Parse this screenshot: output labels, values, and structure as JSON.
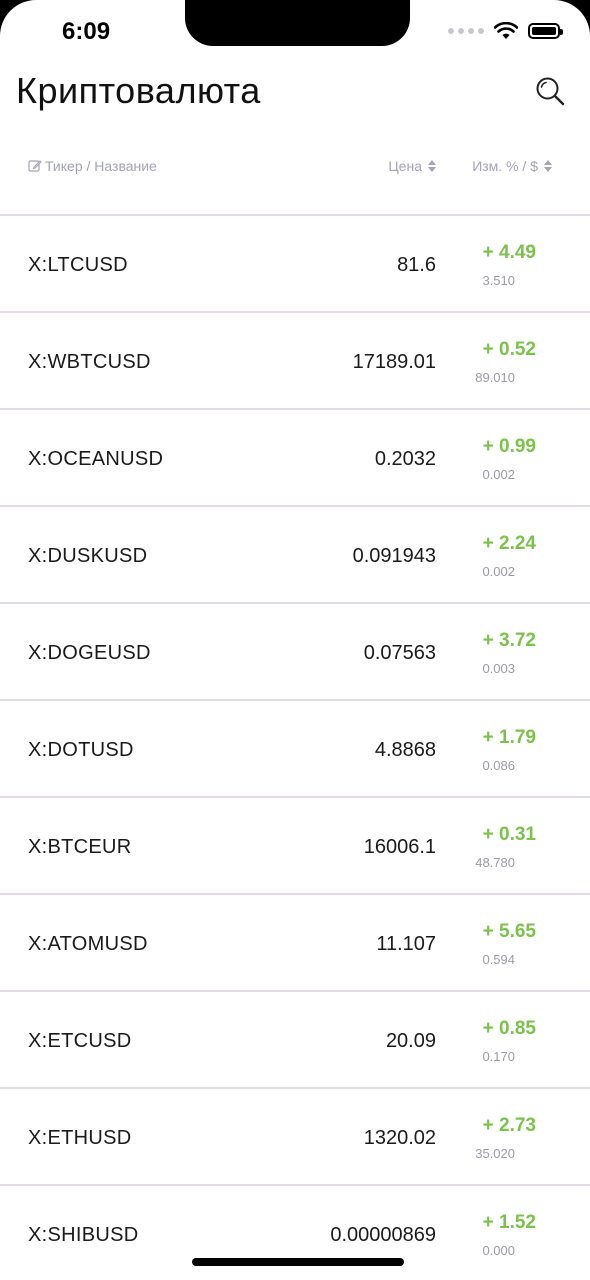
{
  "status_bar": {
    "time": "6:09",
    "icons": [
      "signal-icon",
      "wifi-icon",
      "battery-icon"
    ]
  },
  "header": {
    "title": "Криптовалюта",
    "search_icon": "search-icon"
  },
  "columns": {
    "ticker": "Тикер / Название",
    "price": "Цена",
    "change": "Изм. % / $"
  },
  "colors": {
    "positive": "#7cc04e",
    "muted": "#9a9aa6",
    "divider": "#e2dbe6"
  },
  "rows": [
    {
      "ticker": "X:LTCUSD",
      "price": "81.6",
      "change": "+ 4.49",
      "abs": "3.510"
    },
    {
      "ticker": "X:WBTCUSD",
      "price": "17189.01",
      "change": "+ 0.52",
      "abs": "89.010"
    },
    {
      "ticker": "X:OCEANUSD",
      "price": "0.2032",
      "change": "+ 0.99",
      "abs": "0.002"
    },
    {
      "ticker": "X:DUSKUSD",
      "price": "0.091943",
      "change": "+ 2.24",
      "abs": "0.002"
    },
    {
      "ticker": "X:DOGEUSD",
      "price": "0.07563",
      "change": "+ 3.72",
      "abs": "0.003"
    },
    {
      "ticker": "X:DOTUSD",
      "price": "4.8868",
      "change": "+ 1.79",
      "abs": "0.086"
    },
    {
      "ticker": "X:BTCEUR",
      "price": "16006.1",
      "change": "+ 0.31",
      "abs": "48.780"
    },
    {
      "ticker": "X:ATOMUSD",
      "price": "11.107",
      "change": "+ 5.65",
      "abs": "0.594"
    },
    {
      "ticker": "X:ETCUSD",
      "price": "20.09",
      "change": "+ 0.85",
      "abs": "0.170"
    },
    {
      "ticker": "X:ETHUSD",
      "price": "1320.02",
      "change": "+ 2.73",
      "abs": "35.020"
    },
    {
      "ticker": "X:SHIBUSD",
      "price": "0.00000869",
      "change": "+ 1.52",
      "abs": "0.000"
    }
  ]
}
